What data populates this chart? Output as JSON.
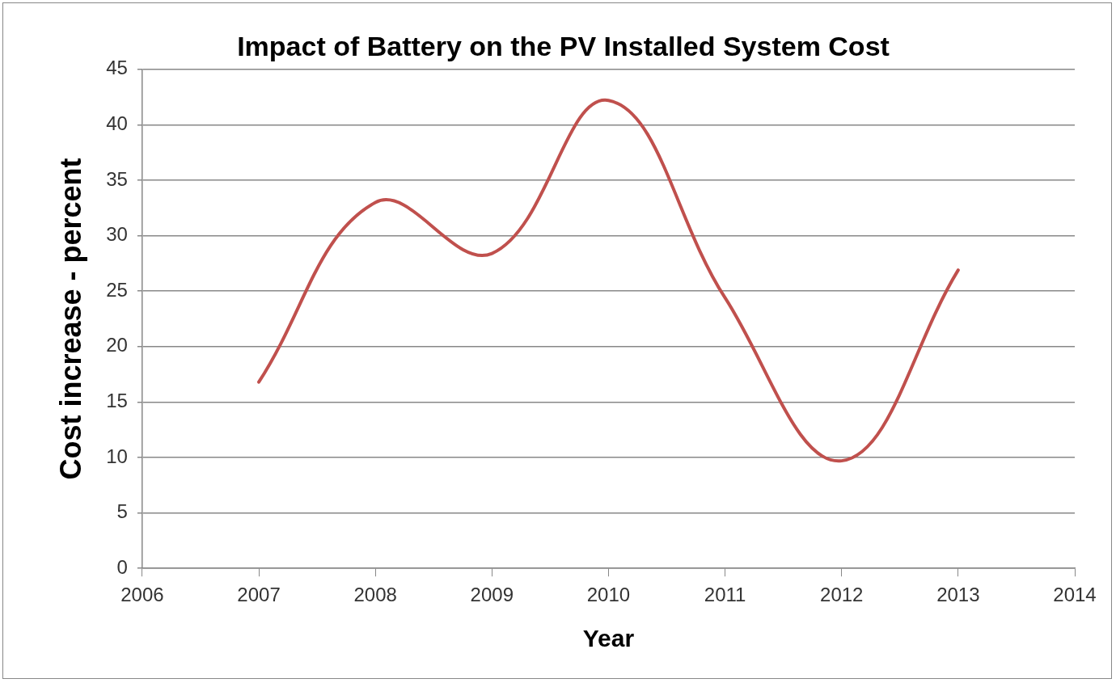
{
  "chart_data": {
    "type": "line",
    "title": "Impact of Battery on the PV Installed System Cost",
    "xlabel": "Year",
    "ylabel": "Cost increase - percent",
    "x": [
      2007,
      2008,
      2009,
      2010,
      2011,
      2012,
      2013
    ],
    "series": [
      {
        "color": "#c0504d",
        "values": [
          16.8,
          33.0,
          28.4,
          42.2,
          24.4,
          9.7,
          26.9
        ]
      }
    ],
    "xlim": [
      2006,
      2014
    ],
    "xticks": [
      2006,
      2007,
      2008,
      2009,
      2010,
      2011,
      2012,
      2013,
      2014
    ],
    "ylim": [
      0,
      45
    ],
    "yticks": [
      0,
      5,
      10,
      15,
      20,
      25,
      30,
      35,
      40,
      45
    ],
    "grid": "y",
    "legend": false,
    "marker": "none",
    "line_style": "solid"
  }
}
